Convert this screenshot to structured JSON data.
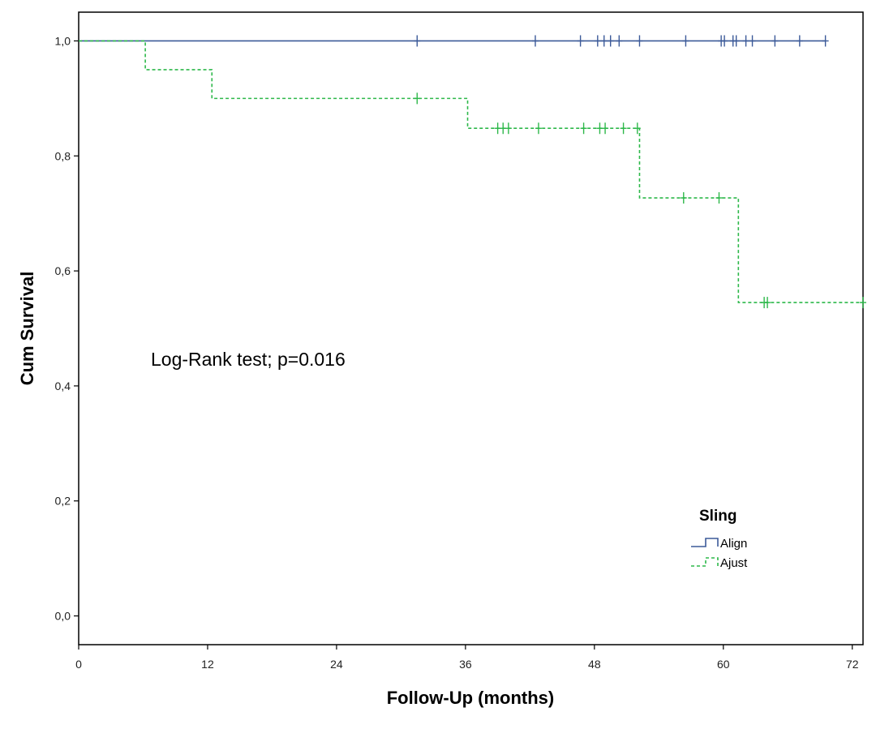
{
  "chart_data": {
    "type": "line",
    "subtype": "kaplan-meier-step",
    "xlabel": "Follow-Up (months)",
    "ylabel": "Cum Survival",
    "xlim": [
      0,
      73
    ],
    "ylim": [
      -0.05,
      1.05
    ],
    "x_ticks": [
      0,
      12,
      24,
      36,
      48,
      60,
      72
    ],
    "x_tick_labels": [
      "0",
      "12",
      "24",
      "36",
      "48",
      "60",
      "72"
    ],
    "y_ticks": [
      0.0,
      0.2,
      0.4,
      0.6,
      0.8,
      1.0
    ],
    "y_tick_labels": [
      "0,0",
      "0,2",
      "0,4",
      "0,6",
      "0,8",
      "1,0"
    ],
    "grid": false,
    "annotation": "Log-Rank test; p=0.016",
    "legend": {
      "title": "Sling",
      "placement": "bottom-right"
    },
    "series": [
      {
        "name": "Align",
        "color": "#3c5a99",
        "line_style": "solid",
        "steps": [
          [
            0,
            1.0
          ],
          [
            69.5,
            1.0
          ]
        ],
        "censored": [
          31.5,
          42.5,
          46.7,
          48.3,
          48.9,
          49.5,
          50.3,
          52.2,
          56.5,
          59.8,
          60.1,
          60.9,
          61.2,
          62.1,
          62.7,
          64.8,
          67.1,
          69.5
        ]
      },
      {
        "name": "Ajust",
        "color": "#2db84a",
        "line_style": "dashed",
        "steps": [
          [
            0,
            1.0
          ],
          [
            6.2,
            0.95
          ],
          [
            12.4,
            0.9
          ],
          [
            36.2,
            0.848
          ],
          [
            52.2,
            0.727
          ],
          [
            61.4,
            0.545
          ],
          [
            73,
            0.545
          ]
        ],
        "censored": [
          31.5,
          39.0,
          39.5,
          40.0,
          42.8,
          47.0,
          48.5,
          49.0,
          50.7,
          52.0,
          56.3,
          59.6,
          63.8,
          64.1,
          73.0
        ]
      }
    ]
  }
}
